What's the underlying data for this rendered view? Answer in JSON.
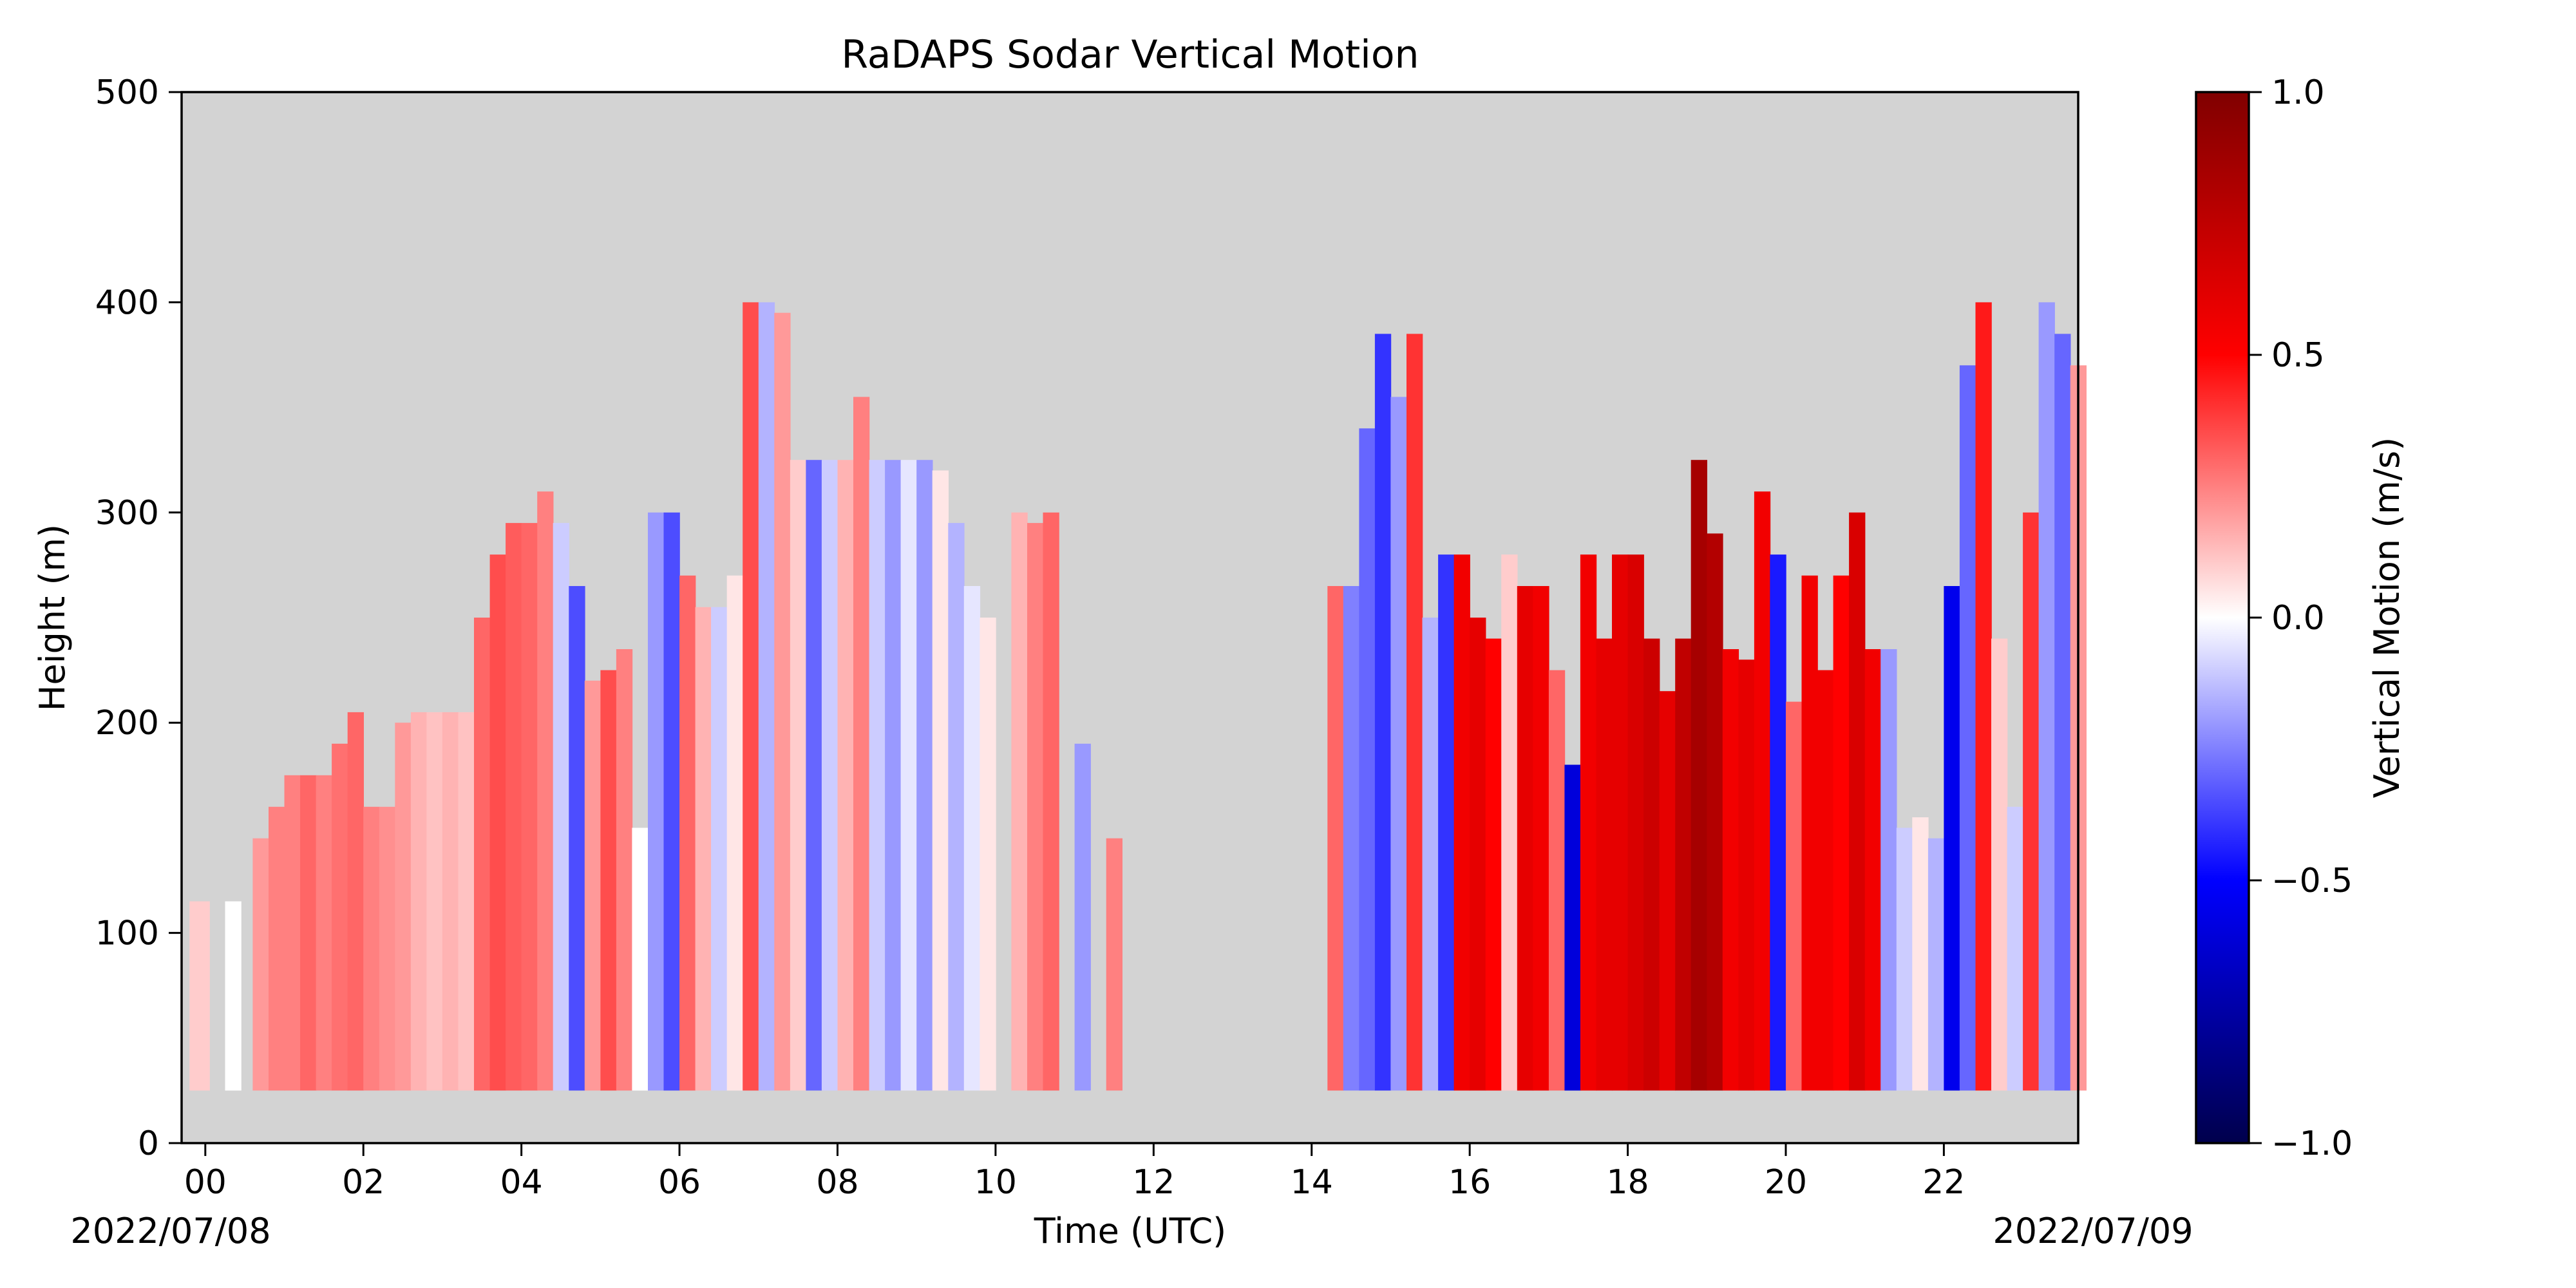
{
  "chart_data": {
    "type": "heatmap",
    "title": "RaDAPS Sodar Vertical Motion",
    "xlabel": "Time (UTC)",
    "ylabel": "Height (m)",
    "xlim": [
      -0.3,
      23.7
    ],
    "ylim": [
      0,
      500
    ],
    "x_ticks": [
      0,
      2,
      4,
      6,
      8,
      10,
      12,
      14,
      16,
      18,
      20,
      22
    ],
    "x_tick_labels": [
      "00",
      "02",
      "04",
      "06",
      "08",
      "10",
      "12",
      "14",
      "16",
      "18",
      "20",
      "22"
    ],
    "y_ticks": [
      0,
      100,
      200,
      300,
      400,
      500
    ],
    "y_tick_labels": [
      "0",
      "100",
      "200",
      "300",
      "400",
      "500"
    ],
    "date_labels": {
      "start": "2022/07/08",
      "end": "2022/07/09"
    },
    "background_color": "#d3d3d3",
    "colorbar": {
      "label": "Vertical Motion (m/s)",
      "colormap": "seismic",
      "range": [
        -1.0,
        1.0
      ],
      "ticks": [
        -1.0,
        -0.5,
        0.0,
        0.5,
        1.0
      ],
      "tick_labels": [
        "−1.0",
        "−0.5",
        "0.0",
        "0.5",
        "1.0"
      ]
    },
    "z_unit": "m/s",
    "min_height": 25,
    "columns": [
      {
        "t": -0.2,
        "top": 115,
        "w": 0.1
      },
      {
        "t": 0.05,
        "top": 0,
        "w": 0.0
      },
      {
        "t": 0.25,
        "top": 115,
        "w": 0.0
      },
      {
        "t": 0.6,
        "top": 145,
        "w": 0.2
      },
      {
        "t": 0.8,
        "top": 160,
        "w": 0.25
      },
      {
        "t": 1.0,
        "top": 175,
        "w": 0.25
      },
      {
        "t": 1.2,
        "top": 175,
        "w": 0.3
      },
      {
        "t": 1.4,
        "top": 175,
        "w": 0.25
      },
      {
        "t": 1.6,
        "top": 190,
        "w": 0.28
      },
      {
        "t": 1.8,
        "top": 205,
        "w": 0.3
      },
      {
        "t": 2.0,
        "top": 160,
        "w": 0.25
      },
      {
        "t": 2.2,
        "top": 160,
        "w": 0.22
      },
      {
        "t": 2.4,
        "top": 200,
        "w": 0.2
      },
      {
        "t": 2.6,
        "top": 205,
        "w": 0.15
      },
      {
        "t": 2.8,
        "top": 205,
        "w": 0.12
      },
      {
        "t": 3.0,
        "top": 205,
        "w": 0.15
      },
      {
        "t": 3.2,
        "top": 205,
        "w": 0.12
      },
      {
        "t": 3.4,
        "top": 250,
        "w": 0.3
      },
      {
        "t": 3.6,
        "top": 280,
        "w": 0.35
      },
      {
        "t": 3.8,
        "top": 295,
        "w": 0.32
      },
      {
        "t": 4.0,
        "top": 295,
        "w": 0.3
      },
      {
        "t": 4.2,
        "top": 310,
        "w": 0.25
      },
      {
        "t": 4.4,
        "top": 295,
        "w": -0.1
      },
      {
        "t": 4.6,
        "top": 265,
        "w": -0.35
      },
      {
        "t": 4.8,
        "top": 220,
        "w": 0.2
      },
      {
        "t": 5.0,
        "top": 225,
        "w": 0.35
      },
      {
        "t": 5.2,
        "top": 235,
        "w": 0.25
      },
      {
        "t": 5.4,
        "top": 150,
        "w": 0.0
      },
      {
        "t": 5.6,
        "top": 300,
        "w": -0.2
      },
      {
        "t": 5.8,
        "top": 300,
        "w": -0.35
      },
      {
        "t": 6.0,
        "top": 270,
        "w": 0.3
      },
      {
        "t": 6.2,
        "top": 255,
        "w": 0.15
      },
      {
        "t": 6.4,
        "top": 255,
        "w": -0.1
      },
      {
        "t": 6.6,
        "top": 270,
        "w": 0.05
      },
      {
        "t": 6.8,
        "top": 400,
        "w": 0.35
      },
      {
        "t": 7.0,
        "top": 400,
        "w": -0.15
      },
      {
        "t": 7.2,
        "top": 395,
        "w": 0.2
      },
      {
        "t": 7.4,
        "top": 325,
        "w": 0.1
      },
      {
        "t": 7.6,
        "top": 325,
        "w": -0.3
      },
      {
        "t": 7.8,
        "top": 325,
        "w": -0.1
      },
      {
        "t": 8.0,
        "top": 325,
        "w": 0.15
      },
      {
        "t": 8.2,
        "top": 355,
        "w": 0.25
      },
      {
        "t": 8.4,
        "top": 325,
        "w": -0.1
      },
      {
        "t": 8.6,
        "top": 325,
        "w": -0.2
      },
      {
        "t": 8.8,
        "top": 325,
        "w": -0.05
      },
      {
        "t": 9.0,
        "top": 325,
        "w": -0.2
      },
      {
        "t": 9.2,
        "top": 320,
        "w": 0.05
      },
      {
        "t": 9.4,
        "top": 295,
        "w": -0.15
      },
      {
        "t": 9.6,
        "top": 265,
        "w": -0.05
      },
      {
        "t": 9.8,
        "top": 250,
        "w": 0.05
      },
      {
        "t": 10.2,
        "top": 300,
        "w": 0.15
      },
      {
        "t": 10.4,
        "top": 295,
        "w": 0.25
      },
      {
        "t": 10.6,
        "top": 300,
        "w": 0.3
      },
      {
        "t": 10.8,
        "top": 0,
        "w": 0.0
      },
      {
        "t": 11.0,
        "top": 190,
        "w": -0.2
      },
      {
        "t": 11.2,
        "top": 0,
        "w": 0.0
      },
      {
        "t": 11.4,
        "top": 145,
        "w": 0.25
      },
      {
        "t": 14.2,
        "top": 265,
        "w": 0.3
      },
      {
        "t": 14.4,
        "top": 265,
        "w": -0.25
      },
      {
        "t": 14.6,
        "top": 340,
        "w": -0.3
      },
      {
        "t": 14.8,
        "top": 385,
        "w": -0.4
      },
      {
        "t": 15.0,
        "top": 355,
        "w": -0.2
      },
      {
        "t": 15.2,
        "top": 385,
        "w": 0.4
      },
      {
        "t": 15.4,
        "top": 250,
        "w": -0.15
      },
      {
        "t": 15.6,
        "top": 280,
        "w": -0.4
      },
      {
        "t": 15.8,
        "top": 280,
        "w": 0.55
      },
      {
        "t": 16.0,
        "top": 250,
        "w": 0.6
      },
      {
        "t": 16.2,
        "top": 240,
        "w": 0.5
      },
      {
        "t": 16.4,
        "top": 280,
        "w": 0.1
      },
      {
        "t": 16.6,
        "top": 265,
        "w": 0.6
      },
      {
        "t": 16.8,
        "top": 265,
        "w": 0.55
      },
      {
        "t": 17.0,
        "top": 225,
        "w": 0.3
      },
      {
        "t": 17.2,
        "top": 180,
        "w": -0.6
      },
      {
        "t": 17.4,
        "top": 280,
        "w": 0.55
      },
      {
        "t": 17.6,
        "top": 240,
        "w": 0.6
      },
      {
        "t": 17.8,
        "top": 280,
        "w": 0.6
      },
      {
        "t": 18.0,
        "top": 280,
        "w": 0.65
      },
      {
        "t": 18.2,
        "top": 240,
        "w": 0.7
      },
      {
        "t": 18.4,
        "top": 215,
        "w": 0.6
      },
      {
        "t": 18.6,
        "top": 240,
        "w": 0.75
      },
      {
        "t": 18.8,
        "top": 325,
        "w": 0.85
      },
      {
        "t": 19.0,
        "top": 290,
        "w": 0.8
      },
      {
        "t": 19.2,
        "top": 235,
        "w": 0.55
      },
      {
        "t": 19.4,
        "top": 230,
        "w": 0.6
      },
      {
        "t": 19.6,
        "top": 310,
        "w": 0.55
      },
      {
        "t": 19.8,
        "top": 280,
        "w": -0.45
      },
      {
        "t": 20.0,
        "top": 210,
        "w": 0.3
      },
      {
        "t": 20.2,
        "top": 270,
        "w": 0.55
      },
      {
        "t": 20.4,
        "top": 225,
        "w": 0.55
      },
      {
        "t": 20.6,
        "top": 270,
        "w": 0.5
      },
      {
        "t": 20.8,
        "top": 300,
        "w": 0.65
      },
      {
        "t": 21.0,
        "top": 235,
        "w": 0.55
      },
      {
        "t": 21.2,
        "top": 235,
        "w": -0.2
      },
      {
        "t": 21.4,
        "top": 150,
        "w": -0.1
      },
      {
        "t": 21.6,
        "top": 155,
        "w": 0.05
      },
      {
        "t": 21.8,
        "top": 145,
        "w": -0.15
      },
      {
        "t": 22.0,
        "top": 265,
        "w": -0.55
      },
      {
        "t": 22.2,
        "top": 370,
        "w": -0.3
      },
      {
        "t": 22.4,
        "top": 400,
        "w": 0.45
      },
      {
        "t": 22.6,
        "top": 240,
        "w": 0.1
      },
      {
        "t": 22.8,
        "top": 160,
        "w": -0.1
      },
      {
        "t": 23.0,
        "top": 300,
        "w": 0.4
      },
      {
        "t": 23.2,
        "top": 400,
        "w": -0.2
      },
      {
        "t": 23.4,
        "top": 385,
        "w": -0.3
      },
      {
        "t": 23.6,
        "top": 370,
        "w": 0.2
      }
    ]
  }
}
